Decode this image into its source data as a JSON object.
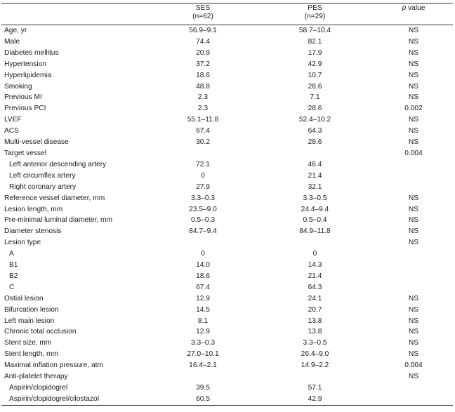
{
  "header": {
    "ses_line1": "SES",
    "ses_line2": "(n=62)",
    "pes_line1": "PES",
    "pes_line2": "(n=29)",
    "p_italic": "p",
    "p_rest": " value"
  },
  "rows": [
    {
      "label": "Age, yr",
      "indent": false,
      "ses": "56.9–9.1",
      "pes": "58.7–10.4",
      "p": "NS"
    },
    {
      "label": "Male",
      "indent": false,
      "ses": "74.4",
      "pes": "82.1",
      "p": "NS"
    },
    {
      "label": "Diabetes mellitus",
      "indent": false,
      "ses": "20.9",
      "pes": "17.9",
      "p": "NS"
    },
    {
      "label": "Hypertension",
      "indent": false,
      "ses": "37.2",
      "pes": "42.9",
      "p": "NS"
    },
    {
      "label": "Hyperlipidemia",
      "indent": false,
      "ses": "18.6",
      "pes": "10.7",
      "p": "NS"
    },
    {
      "label": "Smoking",
      "indent": false,
      "ses": "48.8",
      "pes": "28.6",
      "p": "NS"
    },
    {
      "label": "Previous MI",
      "indent": false,
      "ses": "2.3",
      "pes": "7.1",
      "p": "NS"
    },
    {
      "label": "Previous PCI",
      "indent": false,
      "ses": "2.3",
      "pes": "28.6",
      "p": "0.002"
    },
    {
      "label": "LVEF",
      "indent": false,
      "ses": "55.1–11.8",
      "pes": "52.4–10.2",
      "p": "NS"
    },
    {
      "label": "ACS",
      "indent": false,
      "ses": "67.4",
      "pes": "64.3",
      "p": "NS"
    },
    {
      "label": "Multi-vessel disease",
      "indent": false,
      "ses": "30.2",
      "pes": "28.6",
      "p": "NS"
    },
    {
      "label": "Target vessel",
      "indent": false,
      "ses": "",
      "pes": "",
      "p": "0.004"
    },
    {
      "label": "Left anterior descending artery",
      "indent": true,
      "ses": "72.1",
      "pes": "46.4",
      "p": ""
    },
    {
      "label": "Left circumflex artery",
      "indent": true,
      "ses": "0",
      "pes": "21.4",
      "p": ""
    },
    {
      "label": "Right coronary artery",
      "indent": true,
      "ses": "27.9",
      "pes": "32.1",
      "p": ""
    },
    {
      "label": "Reference vessel diameter, mm",
      "indent": false,
      "ses": "3.3–0.3",
      "pes": "3.3–0.5",
      "p": "NS"
    },
    {
      "label": "Lesion length, mm",
      "indent": false,
      "ses": "23.5–9.0",
      "pes": "24.4–9.4",
      "p": "NS"
    },
    {
      "label": "Pre-minimal luminal diameter, mm",
      "indent": false,
      "ses": "0.5–0.3",
      "pes": "0.5–0.4",
      "p": "NS"
    },
    {
      "label": "Diameter stenosis",
      "indent": false,
      "ses": "84.7–9.4",
      "pes": "84.9–11.8",
      "p": "NS"
    },
    {
      "label": "Lesion type",
      "indent": false,
      "ses": "",
      "pes": "",
      "p": "NS"
    },
    {
      "label": "A",
      "indent": true,
      "ses": "0",
      "pes": "0",
      "p": ""
    },
    {
      "label": "B1",
      "indent": true,
      "ses": "14.0",
      "pes": "14.3",
      "p": ""
    },
    {
      "label": "B2",
      "indent": true,
      "ses": "18.6",
      "pes": "21.4",
      "p": ""
    },
    {
      "label": "C",
      "indent": true,
      "ses": "67.4",
      "pes": "64.3",
      "p": ""
    },
    {
      "label": "Ostial lesion",
      "indent": false,
      "ses": "12.9",
      "pes": "24.1",
      "p": "NS"
    },
    {
      "label": "Bifurcation lesion",
      "indent": false,
      "ses": "14.5",
      "pes": "20.7",
      "p": "NS"
    },
    {
      "label": "Left main lesion",
      "indent": false,
      "ses": "8.1",
      "pes": "13.8",
      "p": "NS"
    },
    {
      "label": "Chronic total occlusion",
      "indent": false,
      "ses": "12.9",
      "pes": "13.8",
      "p": "NS"
    },
    {
      "label": "Stent size, mm",
      "indent": false,
      "ses": "3.3–0.3",
      "pes": "3.3–0.5",
      "p": "NS"
    },
    {
      "label": "Stent length, mm",
      "indent": false,
      "ses": "27.0–10.1",
      "pes": "26.4–9.0",
      "p": "NS"
    },
    {
      "label": "Maximal inflation pressure, atm",
      "indent": false,
      "ses": "16.4–2.1",
      "pes": "14.9–2.2",
      "p": "0.004"
    },
    {
      "label": "Anti-platelet therapy",
      "indent": false,
      "ses": "",
      "pes": "",
      "p": "NS"
    },
    {
      "label": "Aspirin/clopidogrel",
      "indent": true,
      "ses": "39.5",
      "pes": "57.1",
      "p": ""
    },
    {
      "label": "Aspirin/clopidogrel/cilostazol",
      "indent": true,
      "ses": "60.5",
      "pes": "42.9",
      "p": ""
    }
  ]
}
